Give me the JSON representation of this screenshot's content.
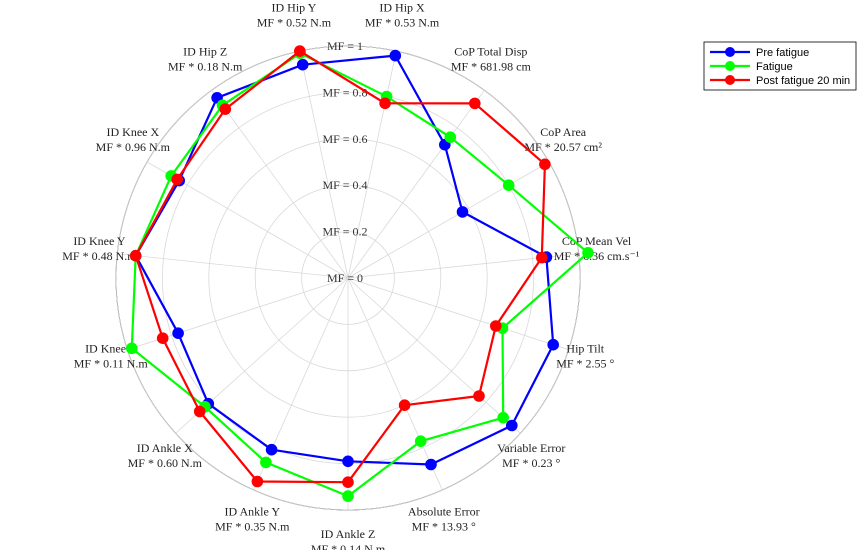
{
  "chart_data": {
    "type": "radar",
    "grid": true,
    "legend_position": "top-right",
    "rlim": [
      0,
      1
    ],
    "ring_labels": [
      "MF = 0",
      "MF = 0.2",
      "MF = 0.4",
      "MF = 0.6",
      "MF = 0.8",
      "MF = 1"
    ],
    "axes": [
      {
        "name": "ID Hip X",
        "sub": "MF * 0.53 N.m"
      },
      {
        "name": "CoP Total Disp",
        "sub": "MF * 681.98 cm"
      },
      {
        "name": "CoP Area",
        "sub": "MF * 20.57 cm²"
      },
      {
        "name": "CoP Mean Vel",
        "sub": "MF * 6.36 cm.s⁻¹"
      },
      {
        "name": "Hip Tilt",
        "sub": "MF * 2.55 °"
      },
      {
        "name": "Variable Error",
        "sub": "MF * 0.23 °"
      },
      {
        "name": "Absolute Error",
        "sub": "MF * 13.93 °"
      },
      {
        "name": "ID Ankle Z",
        "sub": "MF * 0.14 N.m"
      },
      {
        "name": "ID Ankle Y",
        "sub": "MF * 0.35 N.m"
      },
      {
        "name": "ID Ankle X",
        "sub": "MF * 0.60 N.m"
      },
      {
        "name": "ID Knee Z",
        "sub": "MF * 0.11 N.m"
      },
      {
        "name": "ID Knee Y",
        "sub": "MF * 0.48 N.m"
      },
      {
        "name": "ID Knee X",
        "sub": "MF * 0.96 N.m"
      },
      {
        "name": "ID Hip Z",
        "sub": "MF * 0.18 N.m"
      },
      {
        "name": "ID Hip Y",
        "sub": "MF * 0.52 N.m"
      }
    ],
    "series": [
      {
        "name": "Pre fatigue",
        "color": "#0000ff",
        "values": [
          0.98,
          0.71,
          0.57,
          0.86,
          0.93,
          0.95,
          0.88,
          0.79,
          0.81,
          0.81,
          0.77,
          0.92,
          0.84,
          0.96,
          0.94
        ]
      },
      {
        "name": "Fatigue",
        "color": "#00ff00",
        "values": [
          0.8,
          0.75,
          0.8,
          1.04,
          0.7,
          0.9,
          0.77,
          0.94,
          0.87,
          0.83,
          0.98,
          0.92,
          0.88,
          0.92,
          0.99
        ]
      },
      {
        "name": "Post fatigue 20 min",
        "color": "#ff0000",
        "values": [
          0.77,
          0.93,
          0.98,
          0.84,
          0.67,
          0.76,
          0.6,
          0.88,
          0.96,
          0.86,
          0.84,
          0.92,
          0.85,
          0.9,
          1.0
        ]
      }
    ]
  }
}
